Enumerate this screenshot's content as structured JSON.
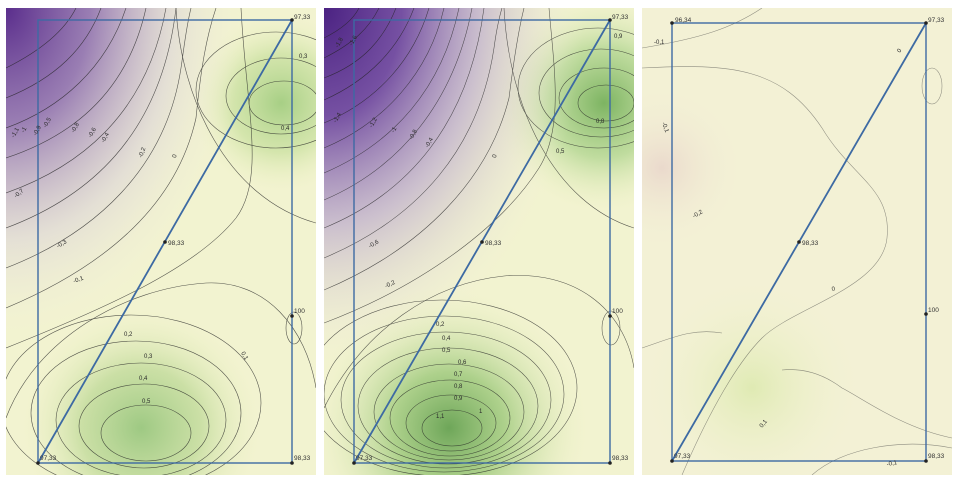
{
  "panels": [
    {
      "id": "panel-1",
      "points": {
        "top_right": "97,33",
        "center": "98,33",
        "right_mid": "100",
        "bottom_left": "97,33",
        "bottom_right": "98,33"
      },
      "contour_labels": [
        "-1,1",
        "-1",
        "-0,9",
        "-0,8",
        "-0,7",
        "-0,6",
        "-0,5",
        "-0,4",
        "-0,3",
        "-0,2",
        "-0,1",
        "0",
        "0,1",
        "0,2",
        "0,3",
        "0,4",
        "0,5",
        "0,3",
        "0,4"
      ]
    },
    {
      "id": "panel-2",
      "points": {
        "top_right": "97,33",
        "center": "98,33",
        "right_mid": "100",
        "bottom_left": "97,33",
        "bottom_right": "98,33"
      },
      "contour_labels": [
        "-1,8",
        "-1,6",
        "-1,4",
        "-1,2",
        "-1",
        "-0,8",
        "-0,6",
        "-0,4",
        "-0,2",
        "0",
        "0,2",
        "0,4",
        "0,5",
        "0,6",
        "0,7",
        "0,8",
        "0,9",
        "1",
        "1,1",
        "0,5",
        "0,8",
        "0,9"
      ]
    },
    {
      "id": "panel-3",
      "points": {
        "top_left": "96,34",
        "top_right": "97,33",
        "center": "98,33",
        "right_mid": "100",
        "bottom_left": "97,33",
        "bottom_right": "98,33"
      },
      "contour_labels": [
        "-0,1",
        "-0,1",
        "-0,2",
        "0",
        "0",
        "0,1",
        "-0,1"
      ]
    }
  ]
}
